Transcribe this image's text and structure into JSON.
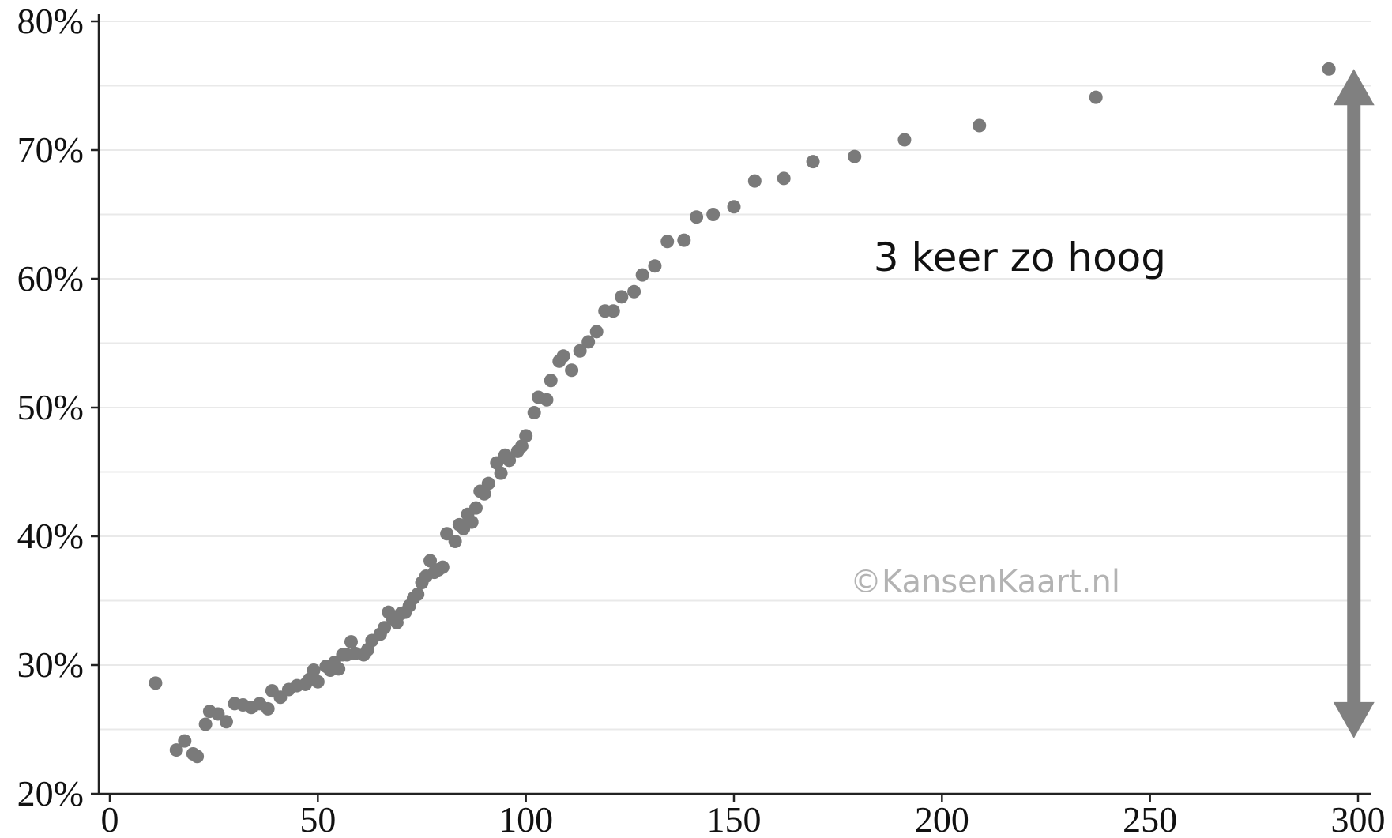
{
  "chart_data": {
    "type": "scatter",
    "title": "",
    "xlabel": "",
    "ylabel": "",
    "xlim": [
      0,
      300
    ],
    "ylim": [
      20,
      80
    ],
    "x_ticks": [
      0,
      50,
      100,
      150,
      200,
      250,
      300
    ],
    "x_tick_labels": [
      "0",
      "50",
      "100",
      "150",
      "200",
      "250",
      "300"
    ],
    "y_ticks": [
      20,
      30,
      40,
      50,
      60,
      70,
      80
    ],
    "y_tick_labels": [
      "20%",
      "30%",
      "40%",
      "50%",
      "60%",
      "70%",
      "80%"
    ],
    "y_minor_grid": [
      25,
      35,
      45,
      55,
      65,
      75
    ],
    "grid": true,
    "point_color": "#7a7a7a",
    "annotation_color": "#808080",
    "annotation": {
      "text": "3 keer zo hoog",
      "arrow_from": 24.3,
      "arrow_to": 76.3,
      "arrow_x": 299
    },
    "watermark": "©KansenKaart.nl",
    "points": [
      [
        11,
        28.6
      ],
      [
        16,
        23.4
      ],
      [
        18,
        24.1
      ],
      [
        20,
        23.1
      ],
      [
        21,
        22.9
      ],
      [
        23,
        25.4
      ],
      [
        24,
        26.4
      ],
      [
        26,
        26.2
      ],
      [
        28,
        25.6
      ],
      [
        30,
        27.0
      ],
      [
        32,
        26.9
      ],
      [
        34,
        26.7
      ],
      [
        36,
        27.0
      ],
      [
        38,
        26.6
      ],
      [
        39,
        28.0
      ],
      [
        41,
        27.5
      ],
      [
        43,
        28.1
      ],
      [
        45,
        28.4
      ],
      [
        47,
        28.5
      ],
      [
        48,
        28.9
      ],
      [
        49,
        29.6
      ],
      [
        50,
        28.7
      ],
      [
        52,
        29.9
      ],
      [
        53,
        29.6
      ],
      [
        54,
        30.2
      ],
      [
        55,
        29.7
      ],
      [
        56,
        30.8
      ],
      [
        57,
        30.8
      ],
      [
        58,
        31.8
      ],
      [
        59,
        30.9
      ],
      [
        61,
        30.8
      ],
      [
        62,
        31.2
      ],
      [
        63,
        31.9
      ],
      [
        65,
        32.4
      ],
      [
        66,
        32.9
      ],
      [
        67,
        34.1
      ],
      [
        68,
        33.6
      ],
      [
        69,
        33.3
      ],
      [
        70,
        34.0
      ],
      [
        71,
        34.1
      ],
      [
        72,
        34.6
      ],
      [
        73,
        35.2
      ],
      [
        74,
        35.5
      ],
      [
        75,
        36.4
      ],
      [
        76,
        36.9
      ],
      [
        77,
        38.1
      ],
      [
        78,
        37.2
      ],
      [
        79,
        37.4
      ],
      [
        80,
        37.6
      ],
      [
        81,
        40.2
      ],
      [
        83,
        39.6
      ],
      [
        84,
        40.9
      ],
      [
        85,
        40.6
      ],
      [
        86,
        41.7
      ],
      [
        87,
        41.1
      ],
      [
        88,
        42.2
      ],
      [
        89,
        43.5
      ],
      [
        90,
        43.3
      ],
      [
        91,
        44.1
      ],
      [
        93,
        45.7
      ],
      [
        94,
        44.9
      ],
      [
        95,
        46.3
      ],
      [
        96,
        45.9
      ],
      [
        98,
        46.6
      ],
      [
        99,
        47.0
      ],
      [
        100,
        47.8
      ],
      [
        102,
        49.6
      ],
      [
        103,
        50.8
      ],
      [
        105,
        50.6
      ],
      [
        106,
        52.1
      ],
      [
        108,
        53.6
      ],
      [
        109,
        54.0
      ],
      [
        111,
        52.9
      ],
      [
        113,
        54.4
      ],
      [
        115,
        55.1
      ],
      [
        117,
        55.9
      ],
      [
        119,
        57.5
      ],
      [
        121,
        57.5
      ],
      [
        123,
        58.6
      ],
      [
        126,
        59.0
      ],
      [
        128,
        60.3
      ],
      [
        131,
        61.0
      ],
      [
        134,
        62.9
      ],
      [
        138,
        63.0
      ],
      [
        141,
        64.8
      ],
      [
        145,
        65.0
      ],
      [
        150,
        65.6
      ],
      [
        155,
        67.6
      ],
      [
        162,
        67.8
      ],
      [
        169,
        69.1
      ],
      [
        179,
        69.5
      ],
      [
        191,
        70.8
      ],
      [
        209,
        71.9
      ],
      [
        237,
        74.1
      ],
      [
        293,
        76.3
      ]
    ]
  }
}
